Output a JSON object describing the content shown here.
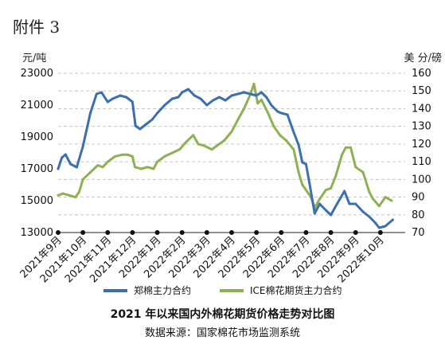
{
  "attachment_label": "附件 3",
  "chart_data": {
    "type": "line",
    "title": "2021 年以来国内外棉花期货价格走势对比图",
    "source": "数据来源：国家棉花市场监测系统",
    "y_left_unit": "元/吨",
    "y_right_unit": "美 分/磅",
    "y_left_ticks": [
      "23000",
      "21000",
      "19000",
      "17000",
      "15000",
      "13000"
    ],
    "y_left_range": [
      13000,
      23000
    ],
    "y_right_ticks": [
      "160",
      "150",
      "140",
      "130",
      "120",
      "110",
      "100",
      "90",
      "80",
      "70"
    ],
    "y_right_range": [
      70,
      160
    ],
    "x_ticks": [
      "2021年9月",
      "2021年10月",
      "2021年11月",
      "2021年12月",
      "2022年1月",
      "2022年2月",
      "2022年3月",
      "2022年4月",
      "2022年5月",
      "2022年6月",
      "2022年7月",
      "2022年8月",
      "2022年9月",
      "2022年10月"
    ],
    "grid": true,
    "legend_position": "bottom",
    "series": [
      {
        "name": "郑棉主力合约",
        "axis": "left",
        "color": "#3b6fb0",
        "values": [
          [
            0,
            17000
          ],
          [
            0.15,
            17700
          ],
          [
            0.3,
            17900
          ],
          [
            0.5,
            17300
          ],
          [
            0.75,
            17100
          ],
          [
            1.0,
            18400
          ],
          [
            1.3,
            20500
          ],
          [
            1.55,
            21700
          ],
          [
            1.75,
            21800
          ],
          [
            2.0,
            21200
          ],
          [
            2.2,
            21400
          ],
          [
            2.5,
            21600
          ],
          [
            2.75,
            21500
          ],
          [
            3.0,
            21200
          ],
          [
            3.12,
            19700
          ],
          [
            3.3,
            19500
          ],
          [
            3.55,
            19800
          ],
          [
            3.8,
            20100
          ],
          [
            4.0,
            20500
          ],
          [
            4.3,
            21000
          ],
          [
            4.6,
            21400
          ],
          [
            4.85,
            21500
          ],
          [
            5.0,
            21800
          ],
          [
            5.25,
            22000
          ],
          [
            5.5,
            21600
          ],
          [
            5.75,
            21400
          ],
          [
            6.0,
            21000
          ],
          [
            6.25,
            21300
          ],
          [
            6.5,
            21500
          ],
          [
            6.75,
            21300
          ],
          [
            7.0,
            21600
          ],
          [
            7.25,
            21700
          ],
          [
            7.5,
            21800
          ],
          [
            7.75,
            21700
          ],
          [
            8.0,
            21600
          ],
          [
            8.2,
            21800
          ],
          [
            8.4,
            21500
          ],
          [
            8.6,
            21000
          ],
          [
            8.85,
            20600
          ],
          [
            9.0,
            20500
          ],
          [
            9.25,
            20400
          ],
          [
            9.5,
            19300
          ],
          [
            9.7,
            18500
          ],
          [
            9.85,
            17400
          ],
          [
            10.0,
            17300
          ],
          [
            10.15,
            16000
          ],
          [
            10.35,
            14200
          ],
          [
            10.55,
            14800
          ],
          [
            10.8,
            14400
          ],
          [
            11.0,
            14100
          ],
          [
            11.25,
            14800
          ],
          [
            11.55,
            15600
          ],
          [
            11.75,
            14800
          ],
          [
            12.0,
            14800
          ],
          [
            12.3,
            14300
          ],
          [
            12.55,
            14000
          ],
          [
            12.8,
            13600
          ],
          [
            12.95,
            13300
          ],
          [
            13.2,
            13400
          ],
          [
            13.5,
            13800
          ]
        ]
      },
      {
        "name": "ICE棉花期货主力合约",
        "axis": "right",
        "color": "#8db153",
        "values": [
          [
            0,
            91
          ],
          [
            0.2,
            92
          ],
          [
            0.45,
            91
          ],
          [
            0.7,
            90
          ],
          [
            0.85,
            93
          ],
          [
            1.0,
            100
          ],
          [
            1.3,
            104
          ],
          [
            1.6,
            108
          ],
          [
            1.8,
            107
          ],
          [
            2.0,
            110
          ],
          [
            2.3,
            113
          ],
          [
            2.6,
            114
          ],
          [
            2.8,
            114
          ],
          [
            3.0,
            113
          ],
          [
            3.1,
            107
          ],
          [
            3.35,
            106
          ],
          [
            3.6,
            107
          ],
          [
            3.85,
            106
          ],
          [
            4.0,
            110
          ],
          [
            4.3,
            113
          ],
          [
            4.6,
            115
          ],
          [
            4.9,
            117
          ],
          [
            5.15,
            121
          ],
          [
            5.45,
            125
          ],
          [
            5.65,
            120
          ],
          [
            5.9,
            119
          ],
          [
            6.2,
            117
          ],
          [
            6.4,
            119
          ],
          [
            6.7,
            122
          ],
          [
            7.0,
            127
          ],
          [
            7.3,
            135
          ],
          [
            7.5,
            140
          ],
          [
            7.75,
            148
          ],
          [
            7.9,
            154
          ],
          [
            8.05,
            143
          ],
          [
            8.2,
            145
          ],
          [
            8.45,
            138
          ],
          [
            8.7,
            130
          ],
          [
            8.95,
            125
          ],
          [
            9.2,
            122
          ],
          [
            9.5,
            117
          ],
          [
            9.7,
            104
          ],
          [
            9.85,
            97
          ],
          [
            10.05,
            93
          ],
          [
            10.2,
            90
          ],
          [
            10.35,
            84
          ],
          [
            10.55,
            89
          ],
          [
            10.8,
            94
          ],
          [
            11.0,
            95
          ],
          [
            11.2,
            102
          ],
          [
            11.45,
            114
          ],
          [
            11.6,
            118
          ],
          [
            11.8,
            118
          ],
          [
            12.0,
            107
          ],
          [
            12.3,
            104
          ],
          [
            12.55,
            93
          ],
          [
            12.7,
            89
          ],
          [
            12.95,
            85
          ],
          [
            13.2,
            90
          ],
          [
            13.45,
            88
          ]
        ]
      }
    ]
  }
}
